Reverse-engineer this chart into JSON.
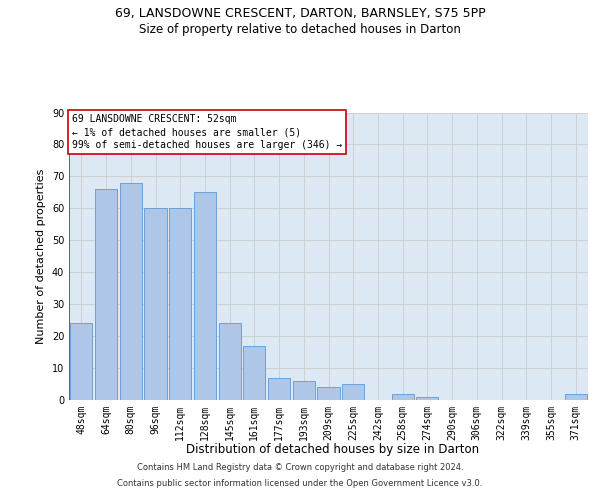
{
  "title_line1": "69, LANSDOWNE CRESCENT, DARTON, BARNSLEY, S75 5PP",
  "title_line2": "Size of property relative to detached houses in Darton",
  "xlabel": "Distribution of detached houses by size in Darton",
  "ylabel": "Number of detached properties",
  "categories": [
    "48sqm",
    "64sqm",
    "80sqm",
    "96sqm",
    "112sqm",
    "128sqm",
    "145sqm",
    "161sqm",
    "177sqm",
    "193sqm",
    "209sqm",
    "225sqm",
    "242sqm",
    "258sqm",
    "274sqm",
    "290sqm",
    "306sqm",
    "322sqm",
    "339sqm",
    "355sqm",
    "371sqm"
  ],
  "values": [
    24,
    66,
    68,
    60,
    60,
    65,
    24,
    17,
    7,
    6,
    4,
    5,
    0,
    2,
    1,
    0,
    0,
    0,
    0,
    0,
    2
  ],
  "bar_color": "#aec6e8",
  "bar_edge_color": "#5b9bd5",
  "annotation_text1": "69 LANSDOWNE CRESCENT: 52sqm",
  "annotation_text2": "← 1% of detached houses are smaller (5)",
  "annotation_text3": "99% of semi-detached houses are larger (346) →",
  "annotation_box_color": "#ffffff",
  "annotation_box_edge_color": "#cc0000",
  "ylim": [
    0,
    90
  ],
  "yticks": [
    0,
    10,
    20,
    30,
    40,
    50,
    60,
    70,
    80,
    90
  ],
  "grid_color": "#cccccc",
  "plot_bg_color": "#dce9f5",
  "footer1": "Contains HM Land Registry data © Crown copyright and database right 2024.",
  "footer2": "Contains public sector information licensed under the Open Government Licence v3.0.",
  "title_fontsize": 9,
  "subtitle_fontsize": 8.5,
  "axis_label_fontsize": 8,
  "tick_fontsize": 7,
  "annotation_fontsize": 7,
  "footer_fontsize": 6
}
